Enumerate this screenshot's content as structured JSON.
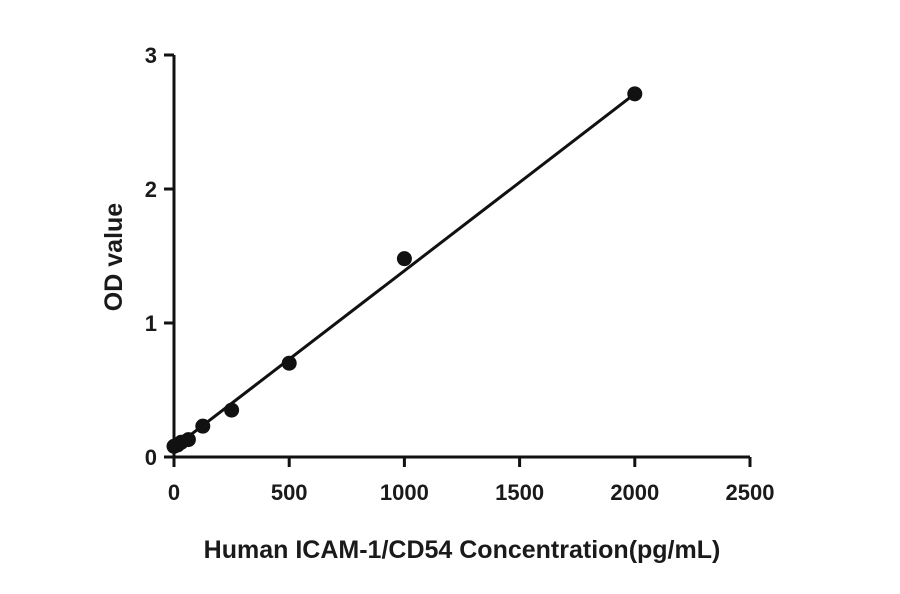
{
  "chart_data": {
    "type": "scatter",
    "title": "",
    "xlabel": "Human ICAM-1/CD54 Concentration(pg/mL)",
    "ylabel": "OD value",
    "xlim": [
      0,
      2500
    ],
    "ylim": [
      0,
      3
    ],
    "xticks": [
      0,
      500,
      1000,
      1500,
      2000,
      2500
    ],
    "yticks": [
      0,
      1,
      2,
      3
    ],
    "xtick_labels": [
      "0",
      "500",
      "1000",
      "1500",
      "2000",
      "2500"
    ],
    "ytick_labels": [
      "0",
      "1",
      "2",
      "3"
    ],
    "grid": false,
    "legend": "none",
    "series": [
      {
        "x": [
          0,
          15.6,
          31.25,
          62.5,
          125,
          250,
          500,
          1000,
          2000
        ],
        "y": [
          0.08,
          0.09,
          0.11,
          0.13,
          0.23,
          0.35,
          0.7,
          1.48,
          2.71
        ],
        "color": "#111111"
      }
    ],
    "fit_line": {
      "type": "linear",
      "x": [
        0,
        2000
      ],
      "y": [
        0.07,
        2.71
      ],
      "color": "#111111"
    }
  }
}
